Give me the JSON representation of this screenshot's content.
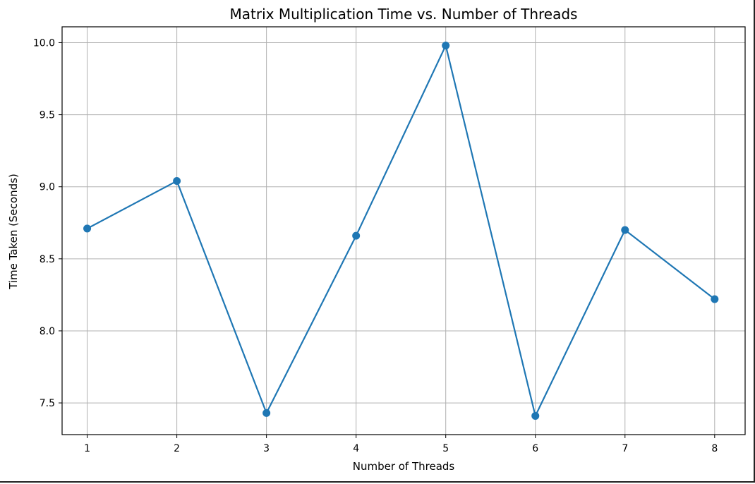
{
  "chart_data": {
    "type": "line",
    "title": "Matrix Multiplication Time vs. Number of Threads",
    "xlabel": "Number of Threads",
    "ylabel": "Time Taken (Seconds)",
    "x": [
      1,
      2,
      3,
      4,
      5,
      6,
      7,
      8
    ],
    "x_tick_labels": [
      "1",
      "2",
      "3",
      "4",
      "5",
      "6",
      "7",
      "8"
    ],
    "y_ticks": [
      7.5,
      8.0,
      8.5,
      9.0,
      9.5,
      10.0
    ],
    "y_tick_labels": [
      "7.5",
      "8.0",
      "8.5",
      "9.0",
      "9.5",
      "10.0"
    ],
    "xlim": [
      0.72,
      8.34
    ],
    "ylim": [
      7.28,
      10.11
    ],
    "series": [
      {
        "values": [
          8.71,
          9.04,
          7.43,
          8.66,
          9.98,
          7.41,
          8.7,
          8.22
        ],
        "color": "#1f77b4",
        "marker": "circle"
      }
    ],
    "grid": true,
    "legend": "none"
  }
}
